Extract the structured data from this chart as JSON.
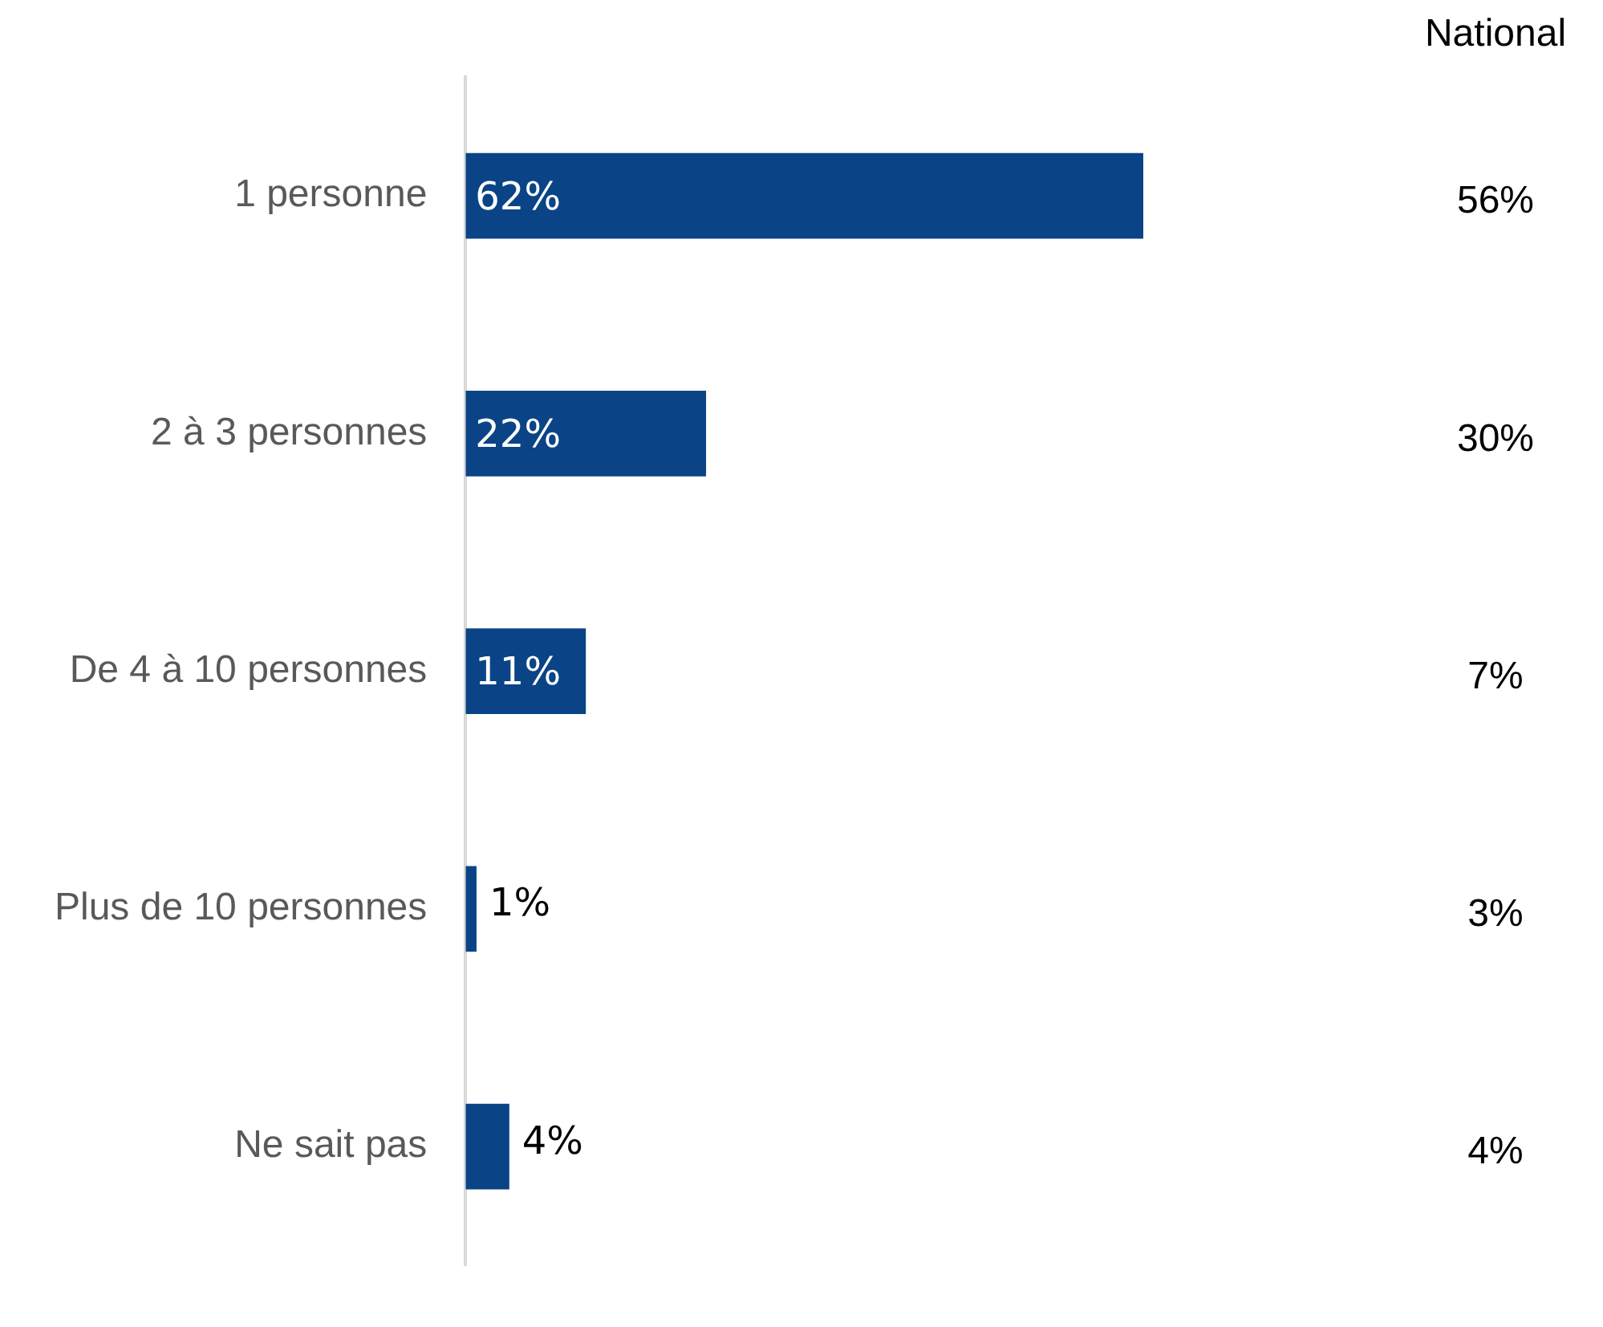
{
  "chart_data": {
    "type": "bar",
    "orientation": "horizontal",
    "categories": [
      "1 personne",
      "2 à 3 personnes",
      "De 4 à 10 personnes",
      "Plus de 10 personnes",
      "Ne sait pas"
    ],
    "values": [
      62,
      22,
      11,
      1,
      4
    ],
    "value_labels": [
      "62%",
      "22%",
      "11%",
      "1%",
      "4%"
    ],
    "color": "#0a4486",
    "legend": false,
    "tick_labels": "y",
    "annotations": [
      "National",
      "56%",
      "30%",
      "7%",
      "3%",
      "4%"
    ]
  }
}
